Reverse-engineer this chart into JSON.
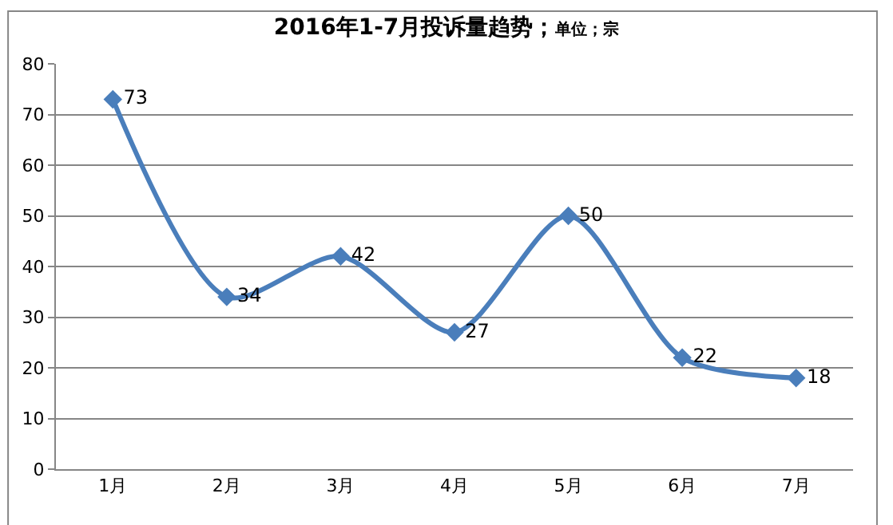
{
  "chart_data": {
    "type": "line",
    "title": "2016年1-7月投诉量趋势；",
    "subtitle": "单位；宗",
    "categories": [
      "1月",
      "2月",
      "3月",
      "4月",
      "5月",
      "6月",
      "7月"
    ],
    "series": [
      {
        "color": "#4a7ebb",
        "values": [
          73,
          34,
          42,
          27,
          50,
          22,
          18
        ]
      }
    ],
    "ylim": [
      0,
      80
    ],
    "yticks": [
      0,
      10,
      20,
      30,
      40,
      50,
      60,
      70,
      80
    ],
    "grid": "y",
    "marker": "diamond",
    "line_style": "solid",
    "data_labels": true,
    "legend": false
  }
}
